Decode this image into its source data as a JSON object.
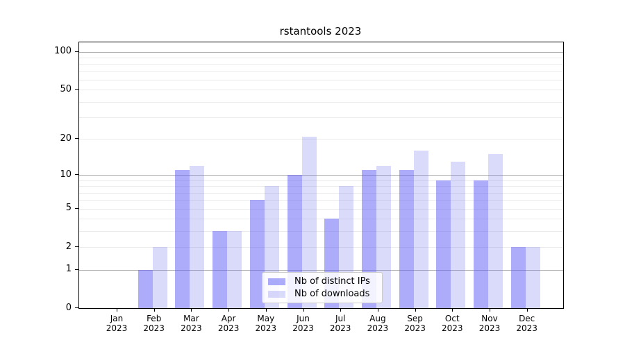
{
  "title": "rstantools 2023",
  "chart_data": {
    "type": "bar",
    "title": "rstantools 2023",
    "categories": [
      "Jan 2023",
      "Feb 2023",
      "Mar 2023",
      "Apr 2023",
      "May 2023",
      "Jun 2023",
      "Jul 2023",
      "Aug 2023",
      "Sep 2023",
      "Oct 2023",
      "Nov 2023",
      "Dec 2023"
    ],
    "months": [
      "Jan",
      "Feb",
      "Mar",
      "Apr",
      "May",
      "Jun",
      "Jul",
      "Aug",
      "Sep",
      "Oct",
      "Nov",
      "Dec"
    ],
    "year": "2023",
    "series": [
      {
        "name": "Nb of distinct IPs",
        "color": "#5a5af5",
        "opacity": 0.5,
        "composite_hex": "#acacfa",
        "values": [
          0,
          1,
          11,
          3,
          6,
          10,
          4,
          11,
          11,
          9,
          9,
          2
        ]
      },
      {
        "name": "Nb of downloads",
        "color": "#6464eb",
        "opacity": 0.24,
        "composite_hex": "#dadafa",
        "values": [
          0,
          2,
          12,
          3,
          8,
          21,
          8,
          12,
          16,
          13,
          15,
          2
        ]
      }
    ],
    "xlabel": "",
    "ylabel": "",
    "yscale": "log1p",
    "ylim": [
      0,
      100
    ],
    "yticks": [
      0,
      1,
      2,
      5,
      10,
      20,
      50,
      100
    ],
    "major_gridlines": [
      1,
      10,
      100
    ],
    "minor_gridlines": [
      2,
      3,
      4,
      5,
      6,
      7,
      8,
      9,
      20,
      30,
      40,
      50,
      60,
      70,
      80,
      90
    ],
    "grid": true,
    "legend_position": "lower center"
  },
  "colors": {
    "background": "#ffffff",
    "spine": "#000000",
    "major_grid": "#b0b0b0",
    "minor_grid": "#ebebeb",
    "text": "#000000",
    "legend_border": "#cccccc"
  }
}
